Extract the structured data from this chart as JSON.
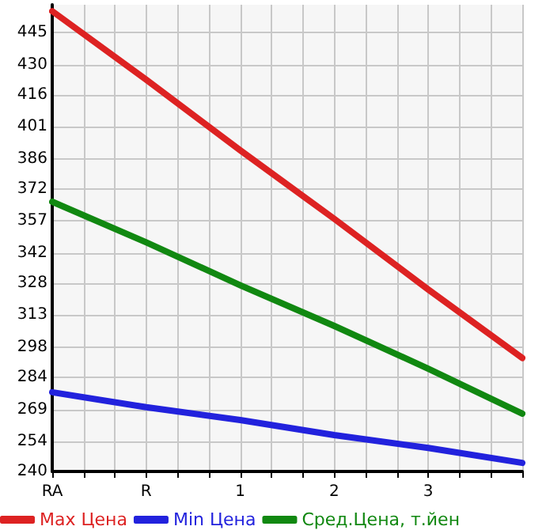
{
  "chart_data": {
    "type": "line",
    "categories": [
      "RA",
      "R",
      "1",
      "2",
      "3",
      null
    ],
    "series": [
      {
        "name": "Max Цена",
        "color": "#dd2222",
        "values": [
          455,
          423,
          390,
          358,
          325,
          293
        ]
      },
      {
        "name": "Min Цена",
        "color": "#2222dd",
        "values": [
          277,
          270,
          264,
          257,
          251,
          244
        ]
      },
      {
        "name": "Сред.Цена, т.йен",
        "color": "#118811",
        "values": [
          366,
          347,
          327,
          308,
          288,
          267
        ]
      }
    ],
    "ylim": [
      240,
      458
    ],
    "yticks": [
      240,
      254,
      269,
      284,
      298,
      313,
      328,
      342,
      357,
      372,
      386,
      401,
      416,
      430,
      445
    ],
    "grid": true,
    "legend": "bottom",
    "marker": "none",
    "line_style": "solid"
  }
}
